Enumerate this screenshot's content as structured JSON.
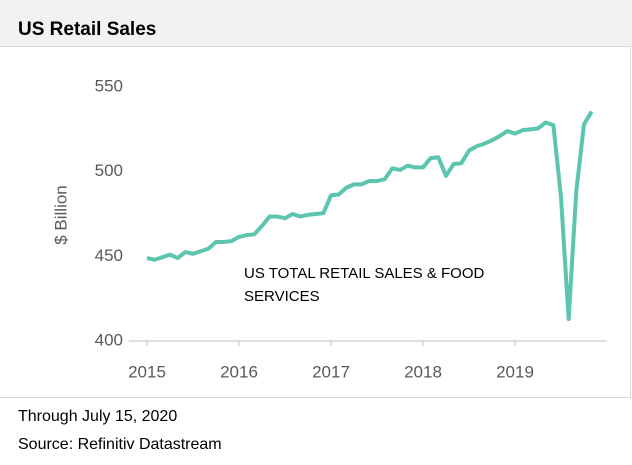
{
  "chart_data": {
    "type": "line",
    "title": "US Retail Sales",
    "y_label": "$ Billion",
    "annotation": "US TOTAL RETAIL SALES & FOOD SERVICES",
    "footnotes": [
      "Through July 15, 2020",
      "Source: Refinitiv Datastream"
    ],
    "x": [
      2015,
      2015.083,
      2015.167,
      2015.25,
      2015.333,
      2015.417,
      2015.5,
      2015.583,
      2015.667,
      2015.75,
      2015.833,
      2015.917,
      2016,
      2016.083,
      2016.167,
      2016.25,
      2016.333,
      2016.417,
      2016.5,
      2016.583,
      2016.667,
      2016.75,
      2016.833,
      2016.917,
      2017,
      2017.083,
      2017.167,
      2017.25,
      2017.333,
      2017.417,
      2017.5,
      2017.583,
      2017.667,
      2017.75,
      2017.833,
      2017.917,
      2018,
      2018.083,
      2018.167,
      2018.25,
      2018.333,
      2018.417,
      2018.5,
      2018.583,
      2018.667,
      2018.75,
      2018.833,
      2018.917,
      2019,
      2019.083,
      2019.167,
      2019.25,
      2019.333,
      2019.417,
      2019.5,
      2019.583,
      2019.667,
      2019.75,
      2019.833
    ],
    "series": [
      {
        "name": "US TOTAL RETAIL SALES & FOOD SERVICES",
        "color": "#5bc5ae",
        "values": [
          449,
          448,
          449.5,
          451,
          449,
          452.5,
          451.5,
          453,
          454.5,
          458.5,
          458.5,
          459,
          461.5,
          462.5,
          463,
          468,
          473.5,
          473.5,
          472.5,
          475,
          473.5,
          474.5,
          475,
          475.5,
          486,
          486.5,
          490.5,
          492.5,
          492.5,
          494.5,
          494.5,
          495.5,
          502,
          501,
          503.5,
          502.5,
          502.5,
          508,
          508.5,
          497.5,
          504.5,
          505,
          512.5,
          515,
          516.5,
          518.5,
          521,
          524,
          522.5,
          524.5,
          525,
          525.5,
          529,
          527.5,
          485,
          413,
          489,
          528,
          535.5
        ]
      }
    ],
    "xlim": [
      2014.8,
      2020
    ],
    "xticks": [
      2015,
      2016,
      2017,
      2018,
      2019
    ],
    "ylim": [
      400,
      550
    ],
    "yticks": [
      400,
      450,
      500,
      550
    ],
    "grid": false
  }
}
